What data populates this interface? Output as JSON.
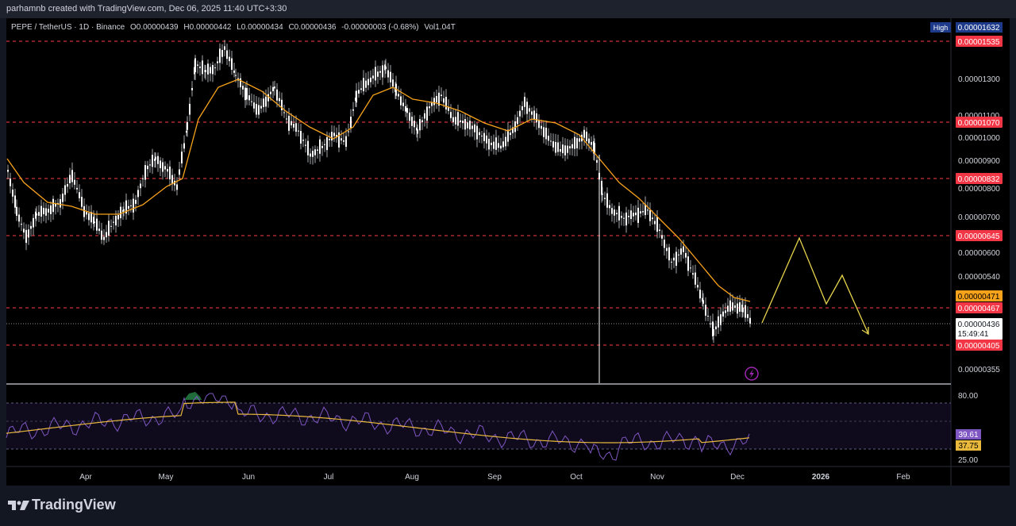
{
  "header": {
    "credit": "parhamnb created with TradingView.com, Dec 06, 2025 11:40 UTC+3:30"
  },
  "legend": {
    "symbol": "PEPE / TetherUS · 1D · Binance",
    "open": "O0.00000439",
    "high": "H0.00000442",
    "low": "L0.00000434",
    "close": "C0.00000436",
    "change": "-0.00000003 (-0.68%)",
    "volume": "Vol1.04T"
  },
  "high_label": {
    "text": "High",
    "value": "0.00001632"
  },
  "footer": {
    "brand": "TradingView"
  },
  "colors": {
    "background": "#000000",
    "support_line": "#ff3b47",
    "level_badge": "#f23645",
    "ma": "#f7a21b",
    "projection": "#e8d44d",
    "rsi": "#7e57c2",
    "rsi_ma": "#e8b93c"
  },
  "chart_data": {
    "type": "candlestick",
    "price_axis_ticks": [
      "0.00001300",
      "0.00001100",
      "0.00001000",
      "0.00000900",
      "0.00000800",
      "0.00000700",
      "0.00000600",
      "0.00000540",
      "0.00000355"
    ],
    "time_axis_ticks": [
      "Apr",
      "May",
      "Jun",
      "Jul",
      "Aug",
      "Sep",
      "Oct",
      "Nov",
      "Dec",
      "2026",
      "Feb"
    ],
    "horizontal_levels": [
      {
        "value": "0.00001535",
        "price": 1.535e-05
      },
      {
        "value": "0.00001070",
        "price": 1.07e-05
      },
      {
        "value": "0.00000832",
        "price": 8.32e-06
      },
      {
        "value": "0.00000645",
        "price": 6.45e-06
      },
      {
        "value": "0.00000467",
        "price": 4.67e-06
      },
      {
        "value": "0.00000405",
        "price": 4.05e-06
      }
    ],
    "ma_label": "0.00000471",
    "current_price": {
      "value": "0.00000436",
      "countdown": "15:49:41"
    },
    "rsi": {
      "ticks": [
        "80.00",
        "25.00"
      ],
      "value": "39.61",
      "ma_value": "37.75"
    }
  }
}
